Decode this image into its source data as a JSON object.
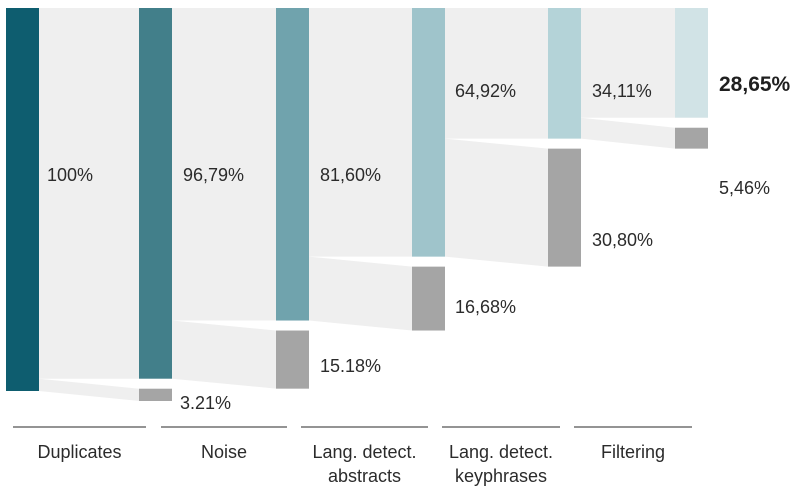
{
  "chart_data": {
    "type": "sankey",
    "stages": [
      {
        "label": [
          "Duplicates"
        ],
        "kept": 100,
        "removed": null,
        "kept_label": "100%",
        "removed_label": ""
      },
      {
        "label": [
          "Noise"
        ],
        "kept": 96.79,
        "removed": 3.21,
        "kept_label": "96,79%",
        "removed_label": "3.21%"
      },
      {
        "label": [
          "Lang. detect.",
          "abstracts"
        ],
        "kept": 81.6,
        "removed": 15.18,
        "kept_label": "81,60%",
        "removed_label": "15.18%"
      },
      {
        "label": [
          "Lang. detect.",
          "keyphrases"
        ],
        "kept": 64.92,
        "removed": 16.68,
        "kept_label": "64,92%",
        "removed_label": "16,68%"
      },
      {
        "label": [
          "Filtering"
        ],
        "kept": 34.11,
        "removed": 30.8,
        "kept_label": "34,11%",
        "removed_label": "30,80%"
      }
    ],
    "final": {
      "kept": 28.65,
      "removed": 5.46,
      "kept_label": "28,65%",
      "removed_label": "5,46%"
    }
  },
  "colors": {
    "kept": [
      "#0e5d6f",
      "#427f8a",
      "#70a3ad",
      "#9fc4cb",
      "#b4d3d8",
      "#d1e3e6"
    ],
    "removed": "#a5a5a5",
    "flow": "#efefef",
    "axis": "#555555"
  }
}
